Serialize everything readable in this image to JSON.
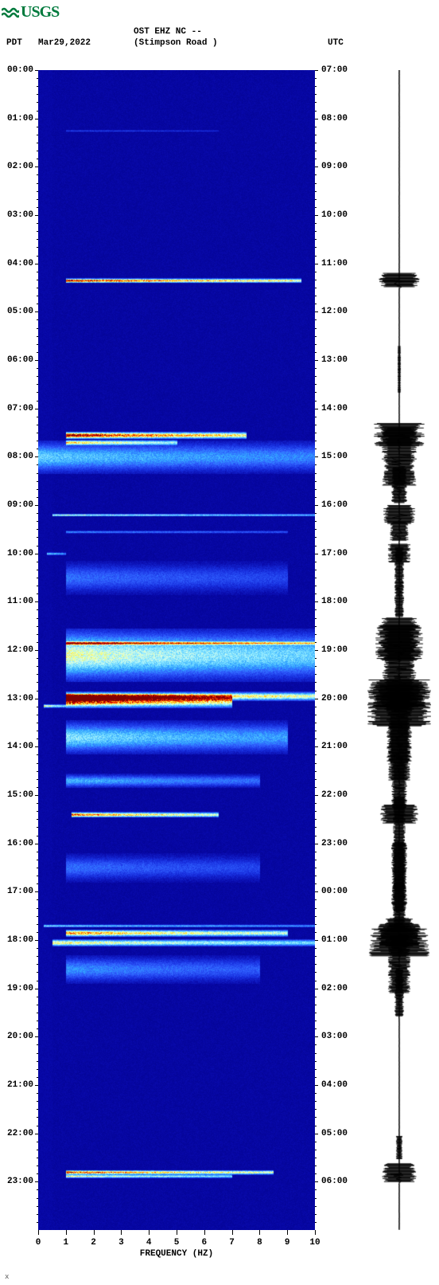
{
  "logo_text": "USGS",
  "logo_color": "#007a3d",
  "header": {
    "line1": "OST EHZ NC --",
    "line2": "(Stimpson Road )",
    "pdt": "PDT",
    "date": "Mar29,2022",
    "utc": "UTC"
  },
  "spectrogram": {
    "type": "spectrogram",
    "x_axis": {
      "label": "FREQUENCY (HZ)",
      "min": 0,
      "max": 10,
      "ticks": [
        0,
        1,
        2,
        3,
        4,
        5,
        6,
        7,
        8,
        9,
        10
      ],
      "label_fontsize": 11
    },
    "y_axis_left": {
      "label": "PDT",
      "ticks": [
        "00:00",
        "01:00",
        "02:00",
        "03:00",
        "04:00",
        "05:00",
        "06:00",
        "07:00",
        "08:00",
        "09:00",
        "10:00",
        "11:00",
        "12:00",
        "13:00",
        "14:00",
        "15:00",
        "16:00",
        "17:00",
        "18:00",
        "19:00",
        "20:00",
        "21:00",
        "22:00",
        "23:00"
      ],
      "minor_per_major": 6
    },
    "y_axis_right": {
      "label": "UTC",
      "ticks": [
        "07:00",
        "08:00",
        "09:00",
        "10:00",
        "11:00",
        "12:00",
        "13:00",
        "14:00",
        "15:00",
        "16:00",
        "17:00",
        "18:00",
        "19:00",
        "20:00",
        "21:00",
        "22:00",
        "23:00",
        "00:00",
        "01:00",
        "02:00",
        "03:00",
        "04:00",
        "05:00",
        "06:00"
      ]
    },
    "total_hours": 24,
    "background_color": "#0808a8",
    "deep_color": "#000080",
    "gridline_color": "#c0c0c0",
    "colormap": [
      "#000080",
      "#0808a8",
      "#1830e0",
      "#3060ff",
      "#30a0ff",
      "#60d0ff",
      "#a0f0ff",
      "#e0ffe0",
      "#ffff60",
      "#ffc020",
      "#ff6000",
      "#e00000",
      "#800000"
    ],
    "events": [
      {
        "t": 1.25,
        "f_lo": 1.0,
        "f_hi": 6.5,
        "intensity": 0.15,
        "thick": 0.02
      },
      {
        "t": 4.35,
        "f_lo": 1.0,
        "f_hi": 9.5,
        "intensity": 0.9,
        "thick": 0.05
      },
      {
        "t": 7.55,
        "f_lo": 1.0,
        "f_hi": 7.5,
        "intensity": 0.95,
        "thick": 0.08
      },
      {
        "t": 7.7,
        "f_lo": 1.0,
        "f_hi": 5.0,
        "intensity": 0.6,
        "thick": 0.06
      },
      {
        "t": 8.0,
        "f_lo": 0.0,
        "f_hi": 10.0,
        "intensity": 0.35,
        "thick": 0.35
      },
      {
        "t": 9.2,
        "f_lo": 0.5,
        "f_hi": 10.0,
        "intensity": 0.5,
        "thick": 0.03
      },
      {
        "t": 9.55,
        "f_lo": 1.0,
        "f_hi": 9.0,
        "intensity": 0.25,
        "thick": 0.03
      },
      {
        "t": 10.0,
        "f_lo": 0.3,
        "f_hi": 1.0,
        "intensity": 0.4,
        "thick": 0.03
      },
      {
        "t": 10.5,
        "f_lo": 1.0,
        "f_hi": 9.0,
        "intensity": 0.2,
        "thick": 0.35
      },
      {
        "t": 11.85,
        "f_lo": 1.0,
        "f_hi": 10.0,
        "intensity": 0.7,
        "thick": 0.04
      },
      {
        "t": 12.1,
        "f_lo": 1.0,
        "f_hi": 10.0,
        "intensity": 0.55,
        "thick": 0.55
      },
      {
        "t": 12.95,
        "f_lo": 1.0,
        "f_hi": 10.0,
        "intensity": 0.85,
        "thick": 0.1
      },
      {
        "t": 13.05,
        "f_lo": 1.0,
        "f_hi": 7.0,
        "intensity": 0.95,
        "thick": 0.15
      },
      {
        "t": 13.15,
        "f_lo": 0.2,
        "f_hi": 1.0,
        "intensity": 0.6,
        "thick": 0.04
      },
      {
        "t": 13.8,
        "f_lo": 1.0,
        "f_hi": 9.0,
        "intensity": 0.4,
        "thick": 0.35
      },
      {
        "t": 14.7,
        "f_lo": 1.0,
        "f_hi": 8.0,
        "intensity": 0.3,
        "thick": 0.15
      },
      {
        "t": 15.4,
        "f_lo": 1.2,
        "f_hi": 6.5,
        "intensity": 0.8,
        "thick": 0.06
      },
      {
        "t": 16.5,
        "f_lo": 1.0,
        "f_hi": 8.0,
        "intensity": 0.2,
        "thick": 0.3
      },
      {
        "t": 17.7,
        "f_lo": 0.2,
        "f_hi": 10.0,
        "intensity": 0.4,
        "thick": 0.03
      },
      {
        "t": 17.85,
        "f_lo": 1.0,
        "f_hi": 9.0,
        "intensity": 0.75,
        "thick": 0.08
      },
      {
        "t": 18.05,
        "f_lo": 0.5,
        "f_hi": 10.0,
        "intensity": 0.6,
        "thick": 0.08
      },
      {
        "t": 18.6,
        "f_lo": 1.0,
        "f_hi": 8.0,
        "intensity": 0.25,
        "thick": 0.3
      },
      {
        "t": 22.8,
        "f_lo": 1.0,
        "f_hi": 8.5,
        "intensity": 0.85,
        "thick": 0.05
      },
      {
        "t": 22.88,
        "f_lo": 1.0,
        "f_hi": 7.0,
        "intensity": 0.6,
        "thick": 0.04
      }
    ],
    "noise_band": {
      "f_lo": 0.0,
      "f_hi": 0.5,
      "intensity": 0.05
    }
  },
  "seismogram": {
    "type": "waveform",
    "baseline_color": "#000000",
    "amplitude_scale": 40,
    "events": [
      {
        "t": 4.35,
        "amp": 0.65,
        "dur": 0.06
      },
      {
        "t": 6.2,
        "amp": 0.05,
        "dur": 0.2
      },
      {
        "t": 7.55,
        "amp": 0.8,
        "dur": 0.1
      },
      {
        "t": 8.0,
        "amp": 0.55,
        "dur": 0.25
      },
      {
        "t": 8.6,
        "amp": 0.25,
        "dur": 0.15
      },
      {
        "t": 9.2,
        "amp": 0.5,
        "dur": 0.08
      },
      {
        "t": 9.55,
        "amp": 0.3,
        "dur": 0.08
      },
      {
        "t": 10.0,
        "amp": 0.35,
        "dur": 0.08
      },
      {
        "t": 10.6,
        "amp": 0.15,
        "dur": 0.3
      },
      {
        "t": 11.85,
        "amp": 0.75,
        "dur": 0.15
      },
      {
        "t": 12.3,
        "amp": 0.55,
        "dur": 0.4
      },
      {
        "t": 12.95,
        "amp": 0.9,
        "dur": 0.1
      },
      {
        "t": 13.1,
        "amp": 1.0,
        "dur": 0.2
      },
      {
        "t": 13.6,
        "amp": 0.4,
        "dur": 0.3
      },
      {
        "t": 14.1,
        "amp": 0.35,
        "dur": 0.25
      },
      {
        "t": 14.8,
        "amp": 0.25,
        "dur": 0.2
      },
      {
        "t": 15.4,
        "amp": 0.6,
        "dur": 0.08
      },
      {
        "t": 16.0,
        "amp": 0.2,
        "dur": 0.4
      },
      {
        "t": 16.7,
        "amp": 0.25,
        "dur": 0.3
      },
      {
        "t": 17.3,
        "amp": 0.2,
        "dur": 0.2
      },
      {
        "t": 17.7,
        "amp": 0.45,
        "dur": 0.06
      },
      {
        "t": 17.9,
        "amp": 0.7,
        "dur": 0.1
      },
      {
        "t": 18.05,
        "amp": 0.95,
        "dur": 0.12
      },
      {
        "t": 18.5,
        "amp": 0.35,
        "dur": 0.25
      },
      {
        "t": 19.1,
        "amp": 0.15,
        "dur": 0.2
      },
      {
        "t": 22.3,
        "amp": 0.1,
        "dur": 0.1
      },
      {
        "t": 22.82,
        "amp": 0.55,
        "dur": 0.08
      }
    ]
  },
  "footer_mark": "x"
}
